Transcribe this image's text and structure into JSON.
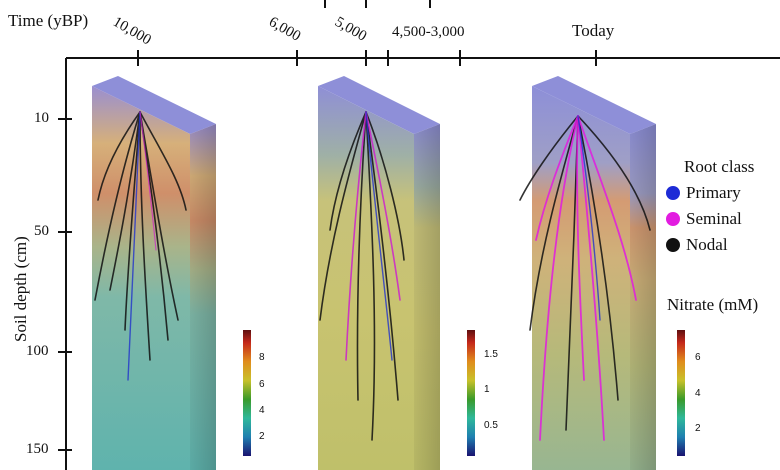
{
  "time_axis": {
    "title": "Time (yBP)",
    "ticks": [
      "10,000",
      "6,000",
      "5,000",
      "4,500-3,000",
      "Today"
    ]
  },
  "depth_axis": {
    "title": "Soil depth (cm)",
    "ticks": [
      "10",
      "50",
      "100",
      "150"
    ]
  },
  "legend": {
    "title": "Root class",
    "items": [
      {
        "label": "Primary",
        "color": "#1d2bd6"
      },
      {
        "label": "Seminal",
        "color": "#e21ce0"
      },
      {
        "label": "Nodal",
        "color": "#111111"
      }
    ]
  },
  "nitrate": {
    "title": "Nitrate (mM)",
    "colorbars": [
      {
        "ticks": [
          "8",
          "6",
          "4",
          "2"
        ]
      },
      {
        "ticks": [
          "1.5",
          "1",
          "0.5"
        ]
      },
      {
        "ticks": [
          "6",
          "4",
          "2"
        ]
      }
    ]
  },
  "colors": {
    "block_top": "#8e8fd8",
    "teal": "#5fb0a8",
    "yellow": "#c9c46a",
    "orange": "#d9956a"
  }
}
